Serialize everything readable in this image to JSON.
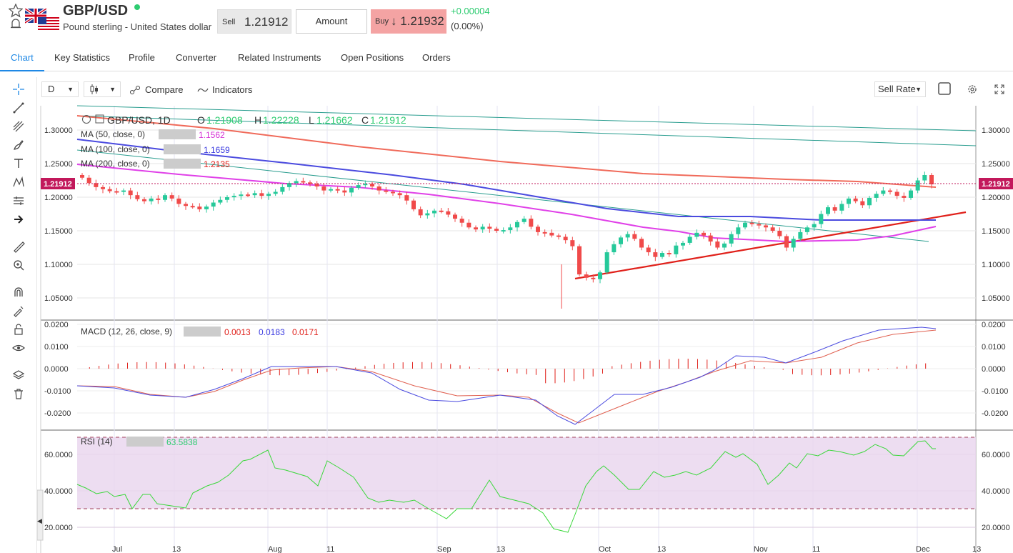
{
  "header": {
    "symbol": "GBP/USD",
    "description": "Pound sterling - United States dollar",
    "sell_label": "Sell",
    "sell_price": "1.21912",
    "amount_label": "Amount",
    "buy_label": "Buy",
    "buy_price": "↓ 1.21932",
    "change": "+0.00004",
    "change_pct": "(0.00%)",
    "colors": {
      "up": "#2ecc71",
      "down": "#f04a4a",
      "buy_bg": "#f4a3a3",
      "accent": "#1e88e5"
    }
  },
  "tabs": [
    "Chart",
    "Key Statistics",
    "Profile",
    "Converter",
    "Related Instruments",
    "Open Positions",
    "Orders"
  ],
  "toolbar": {
    "interval": "D",
    "chart_type_icon": "candles-icon",
    "compare_label": "Compare",
    "indicators_label": "Indicators",
    "rate_select": "Sell Rate"
  },
  "left_tools": [
    "crosshair-icon",
    "trendline-icon",
    "fib-icon",
    "brush-icon",
    "text-icon",
    "pattern-icon",
    "forecast-icon",
    "arrow-icon",
    "ruler-icon",
    "zoom-icon",
    "magnet-icon",
    "lock-drawing-icon",
    "lock-icon",
    "eye-icon",
    "layers-icon",
    "trash-icon"
  ],
  "legend": {
    "ohlc_title": "GBP/USD, 1D",
    "o_label": "O",
    "o_val": "1.21908",
    "h_label": "H",
    "h_val": "1.22228",
    "l_label": "L",
    "l_val": "1.21662",
    "c_label": "C",
    "c_val": "1.21912",
    "ma50": "MA (50, close, 0)",
    "ma50_val": "1.1562",
    "ma100": "MA (100, close, 0)",
    "ma100_val": "1.1659",
    "ma200": "MA (200, close, 0)",
    "ma200_val": "1.2135",
    "macd": "MACD (12, 26, close, 9)",
    "macd_hist": "0.0013",
    "macd_line": "0.0183",
    "macd_signal": "0.0171",
    "rsi": "RSI (14)",
    "rsi_val": "63.5838"
  },
  "current_price_tag": "1.21912",
  "chart_data": {
    "type": "candlestick",
    "price_axis_ticks": [
      "1.30000",
      "1.25000",
      "1.20000",
      "1.15000",
      "1.10000",
      "1.05000"
    ],
    "macd_axis_ticks": [
      "0.0200",
      "0.0100",
      "0.0000",
      "-0.0100",
      "-0.0200"
    ],
    "rsi_axis_ticks": [
      "60.0000",
      "40.0000",
      "20.0000"
    ],
    "x_ticks": [
      "Jul",
      "13",
      "Aug",
      "11",
      "Sep",
      "13",
      "Oct",
      "13",
      "Nov",
      "11",
      "Dec",
      "13"
    ],
    "candles_close": [
      1.229,
      1.221,
      1.215,
      1.212,
      1.209,
      1.208,
      1.21,
      1.203,
      1.197,
      1.194,
      1.198,
      1.196,
      1.203,
      1.198,
      1.19,
      1.187,
      1.186,
      1.182,
      1.186,
      1.192,
      1.196,
      1.2,
      1.202,
      1.204,
      1.203,
      1.206,
      1.202,
      1.205,
      1.208,
      1.215,
      1.221,
      1.224,
      1.222,
      1.22,
      1.216,
      1.21,
      1.212,
      1.21,
      1.207,
      1.214,
      1.218,
      1.22,
      1.216,
      1.21,
      1.208,
      1.206,
      1.203,
      1.195,
      1.182,
      1.173,
      1.176,
      1.18,
      1.179,
      1.174,
      1.168,
      1.162,
      1.155,
      1.152,
      1.156,
      1.153,
      1.15,
      1.151,
      1.155,
      1.163,
      1.168,
      1.156,
      1.148,
      1.147,
      1.143,
      1.141,
      1.136,
      1.127,
      1.085,
      1.08,
      1.078,
      1.088,
      1.118,
      1.13,
      1.14,
      1.145,
      1.138,
      1.125,
      1.118,
      1.111,
      1.117,
      1.115,
      1.128,
      1.132,
      1.141,
      1.147,
      1.143,
      1.134,
      1.125,
      1.131,
      1.145,
      1.155,
      1.162,
      1.16,
      1.158,
      1.155,
      1.15,
      1.142,
      1.125,
      1.138,
      1.148,
      1.155,
      1.16,
      1.175,
      1.185,
      1.18,
      1.19,
      1.198,
      1.194,
      1.188,
      1.199,
      1.205,
      1.21,
      1.208,
      1.202,
      1.199,
      1.21,
      1.225,
      1.233,
      1.2191
    ],
    "ma50": "1.1562",
    "ma100": "1.1659",
    "ma200": "1.2135"
  }
}
